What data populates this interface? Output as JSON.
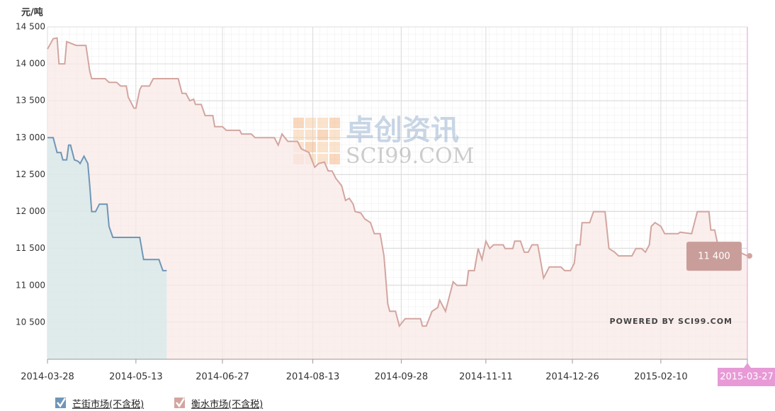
{
  "chart_data": {
    "type": "area",
    "y_axis_title": "元/吨",
    "ylim": [
      10000,
      14500
    ],
    "yticks": [
      {
        "value": 10500,
        "label": "10 500"
      },
      {
        "value": 11000,
        "label": "11 000"
      },
      {
        "value": 11500,
        "label": "11 500"
      },
      {
        "value": 12000,
        "label": "12 000"
      },
      {
        "value": 12500,
        "label": "12 500"
      },
      {
        "value": 13000,
        "label": "13 000"
      },
      {
        "value": 13500,
        "label": "13 500"
      },
      {
        "value": 14000,
        "label": "14 000"
      },
      {
        "value": 14500,
        "label": "14 500"
      }
    ],
    "xlim": [
      "2014-03-28",
      "2015-03-27"
    ],
    "xticks": [
      "2014-03-28",
      "2014-05-13",
      "2014-06-27",
      "2014-08-13",
      "2014-09-28",
      "2014-11-11",
      "2014-12-26",
      "2015-02-10",
      "2015-03-27"
    ],
    "grid": true,
    "series": [
      {
        "name": "衡水市场(不含税)",
        "color": "#d3a5a0",
        "fill": "#f8e9e7",
        "x": [
          "2014-03-28",
          "2014-03-31",
          "2014-04-02",
          "2014-04-03",
          "2014-04-06",
          "2014-04-07",
          "2014-04-12",
          "2014-04-17",
          "2014-04-19",
          "2014-04-20",
          "2014-04-27",
          "2014-04-29",
          "2014-05-03",
          "2014-05-05",
          "2014-05-08",
          "2014-05-09",
          "2014-05-12",
          "2014-05-13",
          "2014-05-15",
          "2014-05-16",
          "2014-05-20",
          "2014-05-22",
          "2014-06-04",
          "2014-06-06",
          "2014-06-08",
          "2014-06-10",
          "2014-06-12",
          "2014-06-13",
          "2014-06-16",
          "2014-06-18",
          "2014-06-22",
          "2014-06-23",
          "2014-06-27",
          "2014-06-29",
          "2014-07-06",
          "2014-07-07",
          "2014-07-12",
          "2014-07-14",
          "2014-07-24",
          "2014-07-26",
          "2014-07-28",
          "2014-07-31",
          "2014-08-05",
          "2014-08-07",
          "2014-08-11",
          "2014-08-14",
          "2014-08-16",
          "2014-08-19",
          "2014-08-21",
          "2014-08-23",
          "2014-08-25",
          "2014-08-28",
          "2014-08-30",
          "2014-09-01",
          "2014-09-03",
          "2014-09-04",
          "2014-09-07",
          "2014-09-09",
          "2014-09-12",
          "2014-09-14",
          "2014-09-17",
          "2014-09-19",
          "2014-09-21",
          "2014-09-22",
          "2014-09-25",
          "2014-09-27",
          "2014-09-30",
          "2014-10-08",
          "2014-10-09",
          "2014-10-11",
          "2014-10-14",
          "2014-10-17",
          "2014-10-18",
          "2014-10-21",
          "2014-10-23",
          "2014-10-25",
          "2014-10-27",
          "2014-11-01",
          "2014-11-02",
          "2014-11-05",
          "2014-11-07",
          "2014-11-09",
          "2014-11-11",
          "2014-11-13",
          "2014-11-15",
          "2014-11-20",
          "2014-11-21",
          "2014-11-25",
          "2014-11-26",
          "2014-11-29",
          "2014-12-01",
          "2014-12-03",
          "2014-12-05",
          "2014-12-08",
          "2014-12-09",
          "2014-12-11",
          "2014-12-14",
          "2014-12-20",
          "2014-12-22",
          "2014-12-25",
          "2014-12-27",
          "2014-12-28",
          "2014-12-30",
          "2014-12-31",
          "2015-01-04",
          "2015-01-06",
          "2015-01-12",
          "2015-01-14",
          "2015-01-17",
          "2015-01-19",
          "2015-01-26",
          "2015-01-28",
          "2015-01-31",
          "2015-02-02",
          "2015-02-04",
          "2015-02-05",
          "2015-02-07",
          "2015-02-10",
          "2015-02-12",
          "2015-02-19",
          "2015-02-20",
          "2015-02-26",
          "2015-03-01",
          "2015-03-07",
          "2015-03-08",
          "2015-03-10",
          "2015-03-12",
          "2015-03-14",
          "2015-03-16",
          "2015-03-21",
          "2015-03-23",
          "2015-03-27"
        ],
        "values": [
          14200,
          14340,
          14350,
          14000,
          14000,
          14300,
          14250,
          14250,
          13900,
          13800,
          13800,
          13750,
          13750,
          13700,
          13700,
          13550,
          13400,
          13400,
          13650,
          13700,
          13700,
          13800,
          13800,
          13600,
          13600,
          13500,
          13520,
          13450,
          13450,
          13300,
          13300,
          13150,
          13150,
          13100,
          13100,
          13050,
          13050,
          13000,
          13000,
          12900,
          13050,
          12950,
          12950,
          12850,
          12800,
          12600,
          12650,
          12670,
          12550,
          12550,
          12450,
          12350,
          12150,
          12180,
          12100,
          12000,
          11980,
          11900,
          11850,
          11700,
          11700,
          11400,
          10750,
          10650,
          10650,
          10450,
          10550,
          10550,
          10450,
          10450,
          10650,
          10700,
          10800,
          10650,
          10850,
          11050,
          11000,
          11000,
          11200,
          11200,
          11500,
          11350,
          11600,
          11500,
          11550,
          11550,
          11500,
          11500,
          11600,
          11600,
          11450,
          11450,
          11550,
          11550,
          11400,
          11100,
          11250,
          11250,
          11200,
          11200,
          11300,
          11550,
          11550,
          11850,
          11850,
          12000,
          12000,
          11500,
          11450,
          11400,
          11400,
          11500,
          11500,
          11450,
          11550,
          11800,
          11850,
          11800,
          11700,
          11700,
          11720,
          11700,
          12000,
          12000,
          11750,
          11750,
          11500,
          11450,
          11500,
          11500,
          11450,
          11400
        ]
      },
      {
        "name": "芒街市场(不含税)",
        "color": "#6f96b8",
        "fill": "#d5e8ea",
        "x": [
          "2014-03-28",
          "2014-03-31",
          "2014-04-02",
          "2014-04-04",
          "2014-04-05",
          "2014-04-07",
          "2014-04-08",
          "2014-04-09",
          "2014-04-11",
          "2014-04-13",
          "2014-04-14",
          "2014-04-16",
          "2014-04-18",
          "2014-04-19",
          "2014-04-20",
          "2014-04-22",
          "2014-04-24",
          "2014-04-28",
          "2014-04-29",
          "2014-05-01",
          "2014-05-15",
          "2014-05-17",
          "2014-05-25",
          "2014-05-27",
          "2014-05-29"
        ],
        "values": [
          13000,
          13000,
          12800,
          12800,
          12700,
          12700,
          12900,
          12900,
          12700,
          12680,
          12650,
          12750,
          12650,
          12350,
          12000,
          12000,
          12100,
          12100,
          11800,
          11650,
          11650,
          11350,
          11350,
          11200,
          11200
        ]
      }
    ],
    "tooltip": {
      "x": "2015-03-27",
      "value": 11400,
      "label": "11 400"
    },
    "watermark": [
      "卓创资讯",
      "SCI99.COM"
    ],
    "credits": "POWERED BY SCI99.COM"
  }
}
